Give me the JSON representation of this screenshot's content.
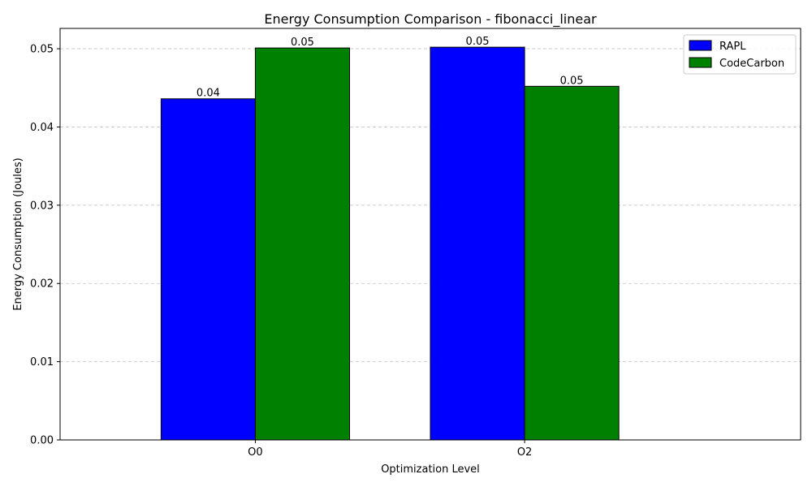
{
  "chart_data": {
    "type": "bar",
    "title": "Energy Consumption Comparison - fibonacci_linear",
    "xlabel": "Optimization Level",
    "ylabel": "Energy Consumption (Joules)",
    "categories": [
      "O0",
      "O2"
    ],
    "series": [
      {
        "name": "RAPL",
        "color": "#0000ff",
        "values": [
          0.0436,
          0.0502
        ],
        "labels": [
          "0.04",
          "0.05"
        ]
      },
      {
        "name": "CodeCarbon",
        "color": "#008000",
        "values": [
          0.0501,
          0.0452
        ],
        "labels": [
          "0.05",
          "0.05"
        ]
      }
    ],
    "ylim": [
      0,
      0.0526
    ],
    "yticks": [
      0.0,
      0.01,
      0.02,
      0.03,
      0.04,
      0.05
    ],
    "ytick_labels": [
      "0.00",
      "0.01",
      "0.02",
      "0.03",
      "0.04",
      "0.05"
    ],
    "grid": "y-dashed",
    "legend_position": "top-right"
  }
}
